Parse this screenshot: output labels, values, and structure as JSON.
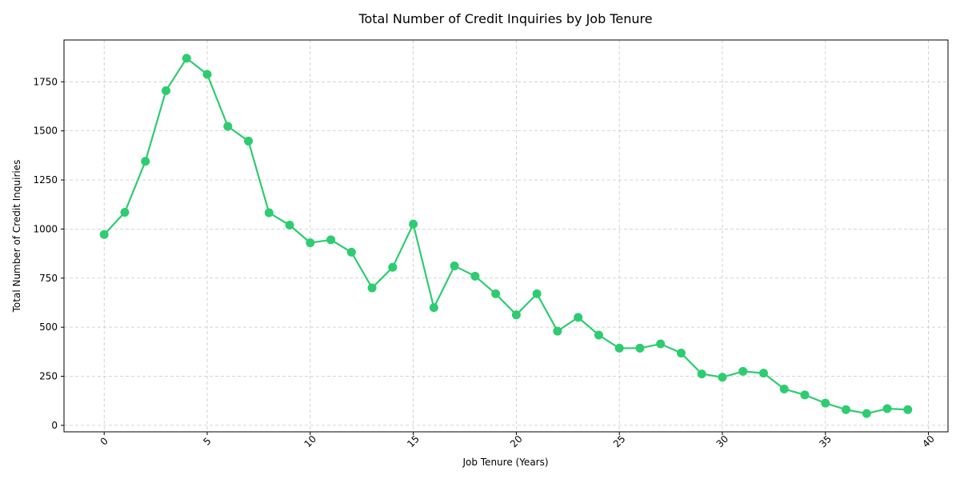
{
  "chart_data": {
    "type": "line",
    "title": "Total Number of Credit Inquiries by Job Tenure",
    "xlabel": "Job Tenure (Years)",
    "ylabel": "Total Number of Credit Inquiries",
    "xlim": [
      -1.95,
      40.95
    ],
    "ylim": [
      -33,
      1963
    ],
    "x_ticks": [
      0,
      5,
      10,
      15,
      20,
      25,
      30,
      35,
      40
    ],
    "y_ticks": [
      0,
      250,
      500,
      750,
      1000,
      1250,
      1500,
      1750
    ],
    "grid": true,
    "legend": "none",
    "color": "#2ecc71",
    "series": [
      {
        "x": [
          0,
          1,
          2,
          3,
          4,
          5,
          6,
          7,
          8,
          9,
          10,
          11,
          12,
          13,
          14,
          15,
          16,
          17,
          18,
          19,
          20,
          21,
          22,
          23,
          24,
          25,
          26,
          27,
          28,
          29,
          30,
          31,
          32,
          33,
          34,
          35,
          36,
          37,
          38,
          39
        ],
        "values": [
          972,
          1085,
          1345,
          1705,
          1870,
          1788,
          1523,
          1448,
          1083,
          1020,
          930,
          945,
          882,
          700,
          805,
          1025,
          600,
          812,
          760,
          670,
          563,
          670,
          480,
          550,
          460,
          393,
          393,
          415,
          368,
          262,
          245,
          275,
          266,
          185,
          155,
          113,
          80,
          60,
          85,
          80
        ]
      }
    ]
  }
}
